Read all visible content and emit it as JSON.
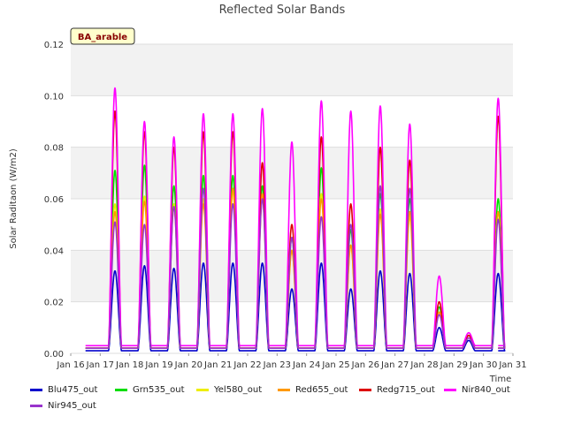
{
  "chart_data": {
    "type": "line",
    "title": "Reflected Solar Bands",
    "ylabel": "Solar Raditaon (W/m2)",
    "xlabel": "Time",
    "station_badge": "BA_arable",
    "ylim": [
      0.0,
      0.12
    ],
    "yticks": [
      "0.00",
      "0.02",
      "0.04",
      "0.06",
      "0.08",
      "0.10",
      "0.12"
    ],
    "xlim": [
      0,
      15
    ],
    "xticks": [
      "Jan 16",
      "Jan 17",
      "Jan 18",
      "Jan 19",
      "Jan 20",
      "Jan 21",
      "Jan 22",
      "Jan 23",
      "Jan 24",
      "Jan 25",
      "Jan 26",
      "Jan 27",
      "Jan 28",
      "Jan 29",
      "Jan 30",
      "Jan 31"
    ],
    "grid": true,
    "legend_position": "bottom",
    "series": [
      {
        "name": "Blu475_out",
        "color": "#0000cc",
        "baseline": 0.001,
        "peaks": [
          0.032,
          0.034,
          0.033,
          0.035,
          0.035,
          0.035,
          0.025,
          0.035,
          0.025,
          0.032,
          0.031,
          0.01,
          0.005,
          0.031
        ]
      },
      {
        "name": "Grn535_out",
        "color": "#00dd00",
        "baseline": 0.002,
        "peaks": [
          0.071,
          0.073,
          0.065,
          0.069,
          0.069,
          0.065,
          0.045,
          0.072,
          0.048,
          0.062,
          0.06,
          0.018,
          0.007,
          0.06
        ]
      },
      {
        "name": "Yel580_out",
        "color": "#eeee00",
        "baseline": 0.002,
        "peaks": [
          0.058,
          0.061,
          0.058,
          0.06,
          0.063,
          0.06,
          0.04,
          0.062,
          0.042,
          0.056,
          0.053,
          0.016,
          0.006,
          0.055
        ]
      },
      {
        "name": "Red655_out",
        "color": "#ff9900",
        "baseline": 0.002,
        "peaks": [
          0.055,
          0.059,
          0.057,
          0.058,
          0.064,
          0.062,
          0.04,
          0.06,
          0.042,
          0.054,
          0.055,
          0.016,
          0.006,
          0.055
        ]
      },
      {
        "name": "Redg715_out",
        "color": "#dd0000",
        "baseline": 0.002,
        "peaks": [
          0.094,
          0.086,
          0.08,
          0.086,
          0.086,
          0.074,
          0.05,
          0.084,
          0.058,
          0.08,
          0.075,
          0.02,
          0.007,
          0.092
        ]
      },
      {
        "name": "Nir840_out",
        "color": "#ff00ff",
        "baseline": 0.003,
        "peaks": [
          0.103,
          0.09,
          0.084,
          0.093,
          0.093,
          0.095,
          0.082,
          0.098,
          0.094,
          0.096,
          0.089,
          0.03,
          0.008,
          0.099
        ]
      },
      {
        "name": "Nir945_out",
        "color": "#9933cc",
        "baseline": 0.002,
        "peaks": [
          0.051,
          0.05,
          0.057,
          0.064,
          0.058,
          0.06,
          0.045,
          0.053,
          0.05,
          0.065,
          0.064,
          0.015,
          0.006,
          0.052
        ]
      }
    ]
  }
}
